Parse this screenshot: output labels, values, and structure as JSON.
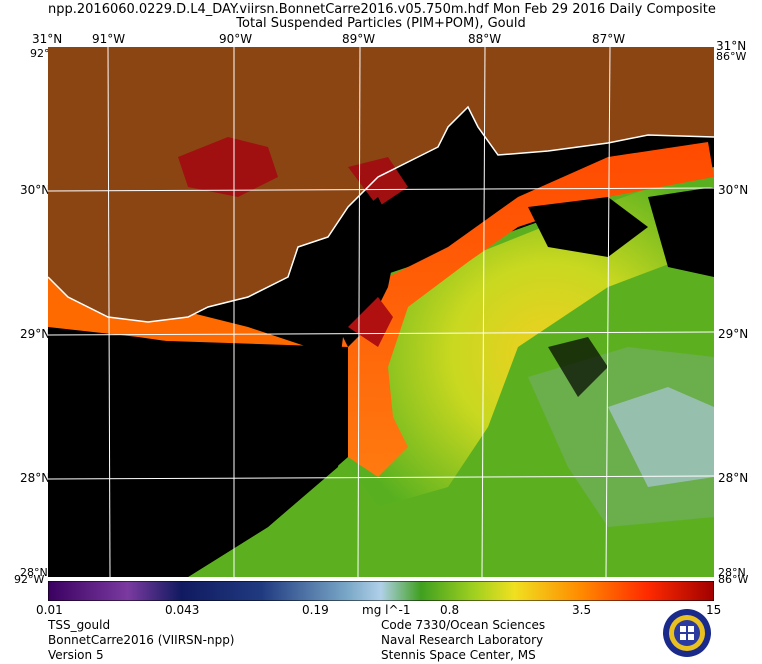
{
  "title": {
    "line1": "npp.2016060.0229.D.L4_DAY.viirsn.BonnetCarre2016.v05.750m.hdf    Mon Feb 29 2016 Daily Composite",
    "line2": "Total Suspended Particles (PIM+POM), Gould"
  },
  "axes": {
    "top_lon": [
      "91°W",
      "90°W",
      "89°W",
      "88°W",
      "87°W"
    ],
    "lat_left": [
      "30°N",
      "29°N",
      "28°N"
    ],
    "lat_right": [
      "30°N",
      "29°N",
      "28°N"
    ],
    "corner_top_left": "31°N",
    "corner_top_right": "31°N",
    "corner_bottom_left": "28°N",
    "corner_bottom_right": "28°N",
    "corner_top_left_lon": "92°W",
    "corner_top_right_lon": "86°W",
    "corner_bottom_left_lon": "92°W",
    "corner_bottom_right_lon": "86°W"
  },
  "colorbar": {
    "labels": [
      "0.01",
      "0.043",
      "0.19",
      "mg l^-1",
      "0.8",
      "3.5",
      "15"
    ]
  },
  "footer": {
    "left": [
      "TSS_gould",
      "BonnetCarre2016 (VIIRSN-npp)",
      "Version 5"
    ],
    "right": [
      "Code 7330/Ocean Sciences",
      "Naval Research Laboratory",
      "Stennis Space Center, MS"
    ]
  },
  "colors": {
    "land": "#8b4513",
    "nodata": "#000000",
    "graticule": "#ffffff",
    "coastline": "#ffffff"
  }
}
